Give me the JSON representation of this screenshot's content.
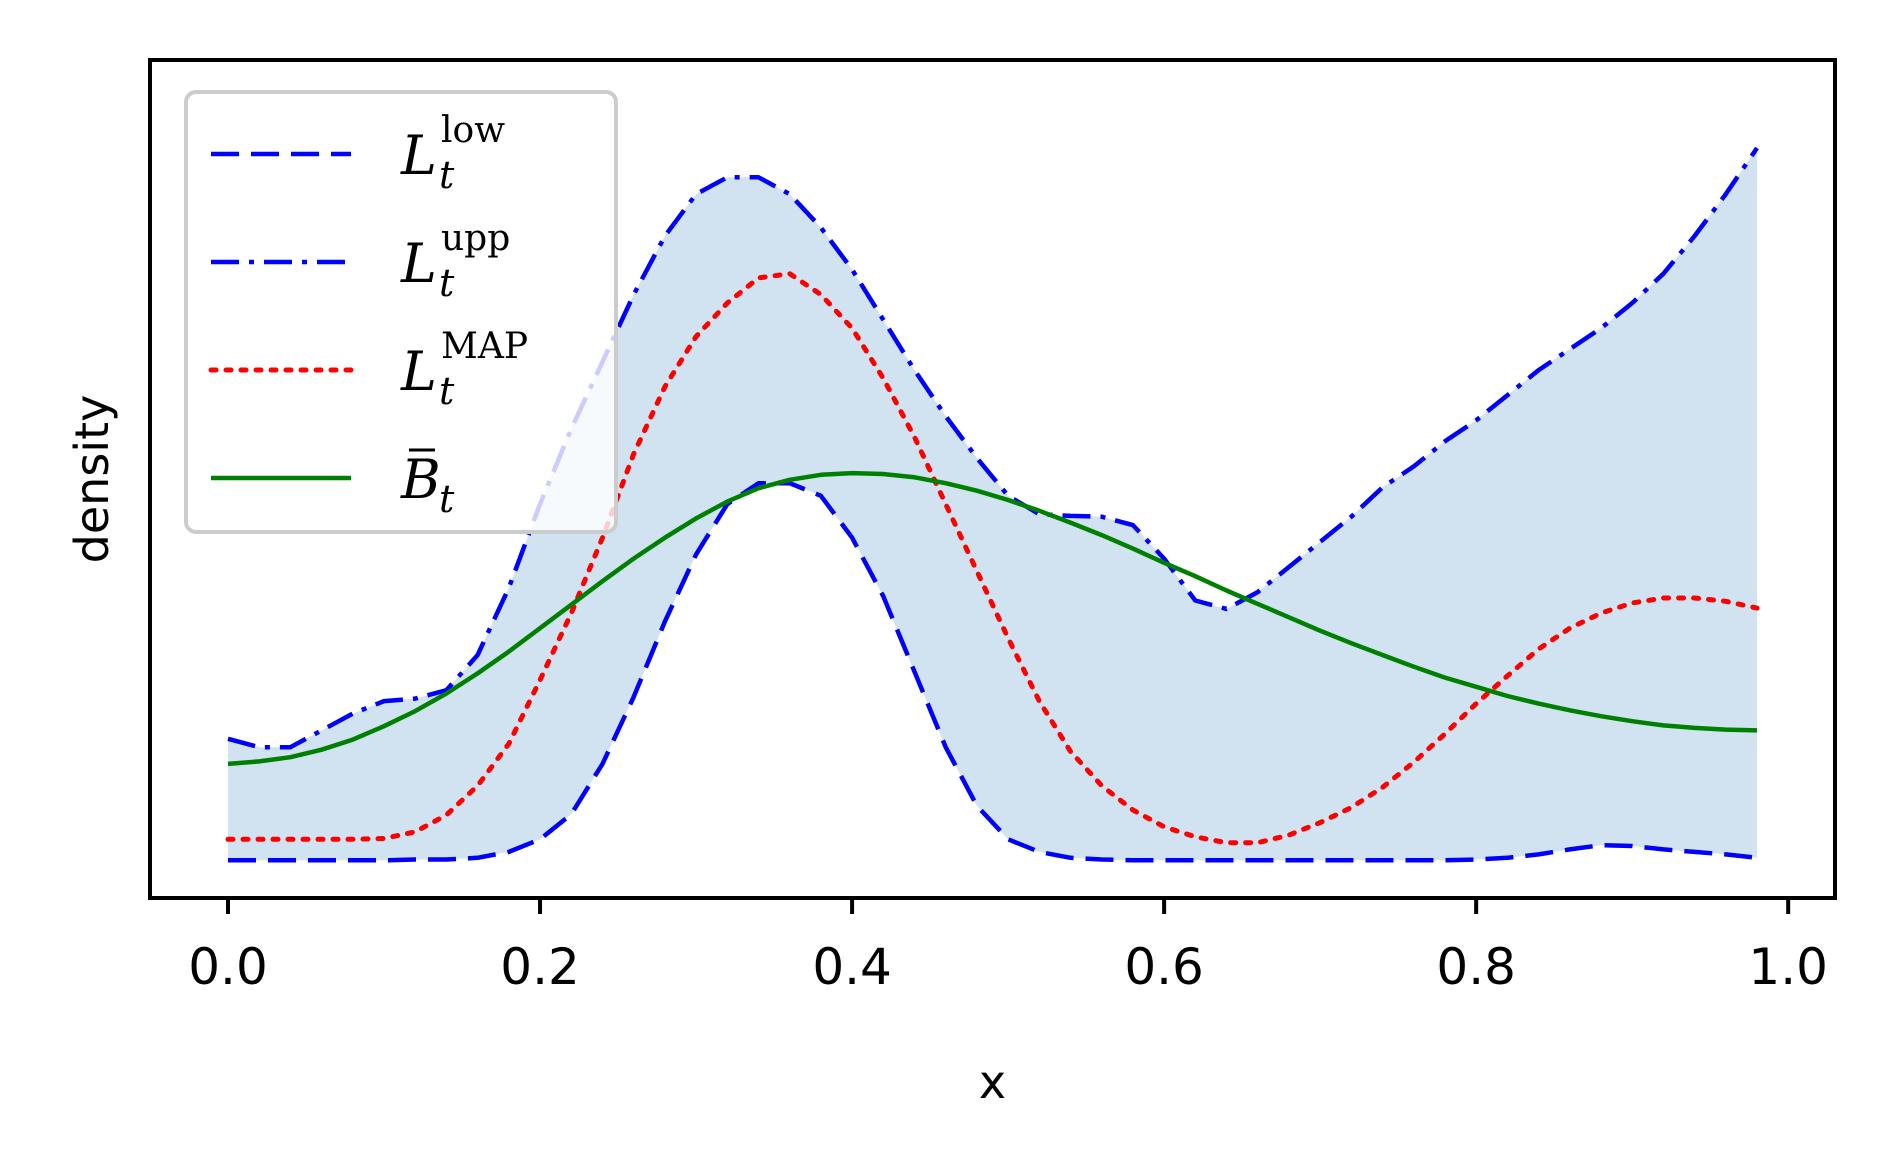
{
  "chart_data": {
    "type": "line",
    "xlabel": "x",
    "ylabel": "density",
    "xlim": [
      -0.05,
      1.03
    ],
    "ylim": [
      0,
      1.0
    ],
    "xticks": [
      "0.0",
      "0.2",
      "0.4",
      "0.6",
      "0.8",
      "1.0"
    ],
    "xtick_values": [
      0.0,
      0.2,
      0.4,
      0.6,
      0.8,
      1.0
    ],
    "yticks_shown": false,
    "legend_position": "top-left",
    "band": {
      "between": [
        "L_low",
        "L_upp"
      ],
      "color": "#d1e3f0"
    },
    "x": [
      0.0,
      0.02,
      0.04,
      0.06,
      0.08,
      0.1,
      0.12,
      0.14,
      0.16,
      0.18,
      0.2,
      0.22,
      0.24,
      0.26,
      0.28,
      0.3,
      0.32,
      0.34,
      0.36,
      0.38,
      0.4,
      0.42,
      0.44,
      0.46,
      0.48,
      0.5,
      0.52,
      0.54,
      0.56,
      0.58,
      0.6,
      0.62,
      0.64,
      0.66,
      0.68,
      0.7,
      0.72,
      0.74,
      0.76,
      0.78,
      0.8,
      0.82,
      0.84,
      0.86,
      0.88,
      0.9,
      0.92,
      0.94,
      0.96,
      0.98
    ],
    "series": [
      {
        "key": "L_low",
        "base": "L",
        "sub": "t",
        "sup": "low",
        "color": "#0000ff",
        "dash": "dashed",
        "values": [
          0.045,
          0.045,
          0.045,
          0.045,
          0.045,
          0.045,
          0.046,
          0.046,
          0.048,
          0.055,
          0.07,
          0.1,
          0.16,
          0.24,
          0.33,
          0.41,
          0.47,
          0.495,
          0.495,
          0.48,
          0.43,
          0.36,
          0.27,
          0.18,
          0.11,
          0.07,
          0.055,
          0.048,
          0.046,
          0.045,
          0.045,
          0.045,
          0.045,
          0.045,
          0.045,
          0.045,
          0.045,
          0.045,
          0.045,
          0.045,
          0.046,
          0.048,
          0.052,
          0.058,
          0.063,
          0.062,
          0.058,
          0.055,
          0.052,
          0.048
        ]
      },
      {
        "key": "L_upp",
        "base": "L",
        "sub": "t",
        "sup": "upp",
        "color": "#0000ff",
        "dash": "dashdot",
        "values": [
          0.19,
          0.18,
          0.18,
          0.2,
          0.22,
          0.235,
          0.238,
          0.248,
          0.29,
          0.37,
          0.47,
          0.56,
          0.64,
          0.72,
          0.79,
          0.84,
          0.86,
          0.86,
          0.84,
          0.8,
          0.75,
          0.69,
          0.63,
          0.575,
          0.525,
          0.48,
          0.458,
          0.456,
          0.455,
          0.445,
          0.405,
          0.355,
          0.345,
          0.365,
          0.395,
          0.425,
          0.455,
          0.49,
          0.515,
          0.545,
          0.57,
          0.6,
          0.63,
          0.655,
          0.68,
          0.71,
          0.745,
          0.79,
          0.84,
          0.895
        ]
      },
      {
        "key": "L_MAP",
        "base": "L",
        "sub": "t",
        "sup": "MAP",
        "color": "#ff0000",
        "dash": "dotted",
        "values": [
          0.07,
          0.07,
          0.07,
          0.07,
          0.07,
          0.071,
          0.079,
          0.099,
          0.134,
          0.184,
          0.26,
          0.34,
          0.43,
          0.53,
          0.61,
          0.67,
          0.71,
          0.74,
          0.745,
          0.72,
          0.68,
          0.62,
          0.55,
          0.47,
          0.39,
          0.31,
          0.235,
          0.175,
          0.134,
          0.105,
          0.085,
          0.073,
          0.066,
          0.066,
          0.075,
          0.09,
          0.108,
          0.132,
          0.162,
          0.196,
          0.232,
          0.265,
          0.297,
          0.322,
          0.34,
          0.352,
          0.358,
          0.358,
          0.354,
          0.346
        ]
      },
      {
        "key": "B_bar",
        "base": "B",
        "sub": "t",
        "sup": "",
        "overbar": true,
        "color": "#008000",
        "dash": "solid",
        "values": [
          0.16,
          0.163,
          0.168,
          0.177,
          0.189,
          0.205,
          0.223,
          0.244,
          0.268,
          0.294,
          0.322,
          0.35,
          0.378,
          0.405,
          0.43,
          0.453,
          0.473,
          0.489,
          0.499,
          0.505,
          0.507,
          0.506,
          0.502,
          0.495,
          0.486,
          0.475,
          0.462,
          0.448,
          0.433,
          0.417,
          0.4,
          0.384,
          0.367,
          0.351,
          0.335,
          0.319,
          0.304,
          0.29,
          0.276,
          0.263,
          0.252,
          0.241,
          0.232,
          0.224,
          0.217,
          0.211,
          0.206,
          0.203,
          0.201,
          0.2
        ]
      }
    ]
  }
}
